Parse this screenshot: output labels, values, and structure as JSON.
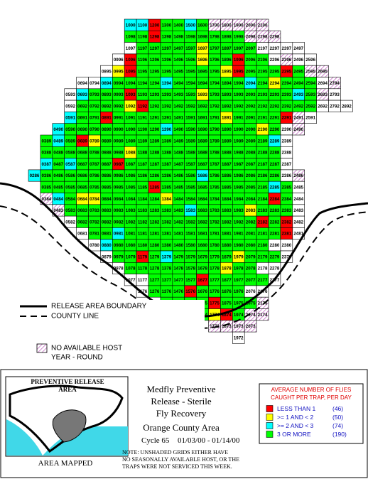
{
  "map": {
    "status_colors": {
      "r": "#ff0000",
      "y": "#ffff00",
      "c": "#00ffff",
      "g": "#00ff00",
      "w": "#ffffff"
    },
    "rows": [
      {
        "cells": [
          "1000",
          "1100",
          "1200",
          "1300",
          "1400",
          "1500",
          "1600",
          "1700",
          "1800",
          "1900",
          "2000",
          "2100"
        ],
        "status": "ccrggcghhhhh"
      },
      {
        "cells": [
          "1098",
          "1198",
          "1298",
          "1398",
          "1498",
          "1598",
          "1698",
          "1798",
          "1898",
          "1998",
          "2098",
          "2198",
          "2298"
        ],
        "status": "ggrggggggghhh"
      },
      {
        "cells": [
          "1097",
          "1197",
          "1297",
          "1397",
          "1497",
          "1597",
          "1697",
          "1797",
          "1897",
          "1997",
          "2097",
          "2197",
          "2297",
          "2397",
          "2497"
        ],
        "status": "wgggggyggggwwww"
      },
      {
        "cells": [
          "0996",
          "1096",
          "1196",
          "1296",
          "1396",
          "1496",
          "1596",
          "1696",
          "1796",
          "1896",
          "1996",
          "2096",
          "2196",
          "2296",
          "2396",
          "2496",
          "2596"
        ],
        "status": "wrgggggyggrggwhww"
      },
      {
        "cells": [
          "0895",
          "0995",
          "1095",
          "1195",
          "1295",
          "1395",
          "1495",
          "1595",
          "1695",
          "1795",
          "1895",
          "1995",
          "2095",
          "2195",
          "2295",
          "2395",
          "2495",
          "2595",
          "2695"
        ],
        "status": "wyrgggggggyrgggrghh"
      },
      {
        "cells": [
          "0694",
          "0794",
          "0894",
          "0994",
          "1094",
          "1194",
          "1294",
          "1394",
          "1494",
          "1594",
          "1694",
          "1794",
          "1894",
          "1994",
          "2094",
          "2194",
          "2294",
          "2394",
          "2494",
          "2594",
          "2694",
          "2794"
        ],
        "status": "wwcggggcggggggcgygggwh"
      },
      {
        "cells": [
          "0593",
          "0693",
          "0793",
          "0893",
          "0993",
          "1093",
          "1193",
          "1293",
          "1393",
          "1493",
          "1593",
          "1693",
          "1793",
          "1893",
          "1993",
          "2093",
          "2193",
          "2293",
          "2393",
          "2493",
          "2593",
          "2693",
          "2793"
        ],
        "status": "wcgggrgggggygggggggcghw"
      },
      {
        "cells": [
          "0592",
          "0692",
          "0792",
          "0892",
          "0992",
          "1092",
          "1192",
          "1292",
          "1392",
          "1492",
          "1592",
          "1692",
          "1792",
          "1892",
          "1992",
          "2092",
          "2192",
          "2292",
          "2392",
          "2492",
          "2592",
          "2692",
          "2792",
          "2892"
        ],
        "status": "wggggyrggggggggggggggwww"
      },
      {
        "cells": [
          "0591",
          "0691",
          "0791",
          "0891",
          "0991",
          "1091",
          "1191",
          "1291",
          "1391",
          "1491",
          "1591",
          "1691",
          "1791",
          "1891",
          "1991",
          "2091",
          "2191",
          "2291",
          "2391",
          "2491",
          "2591"
        ],
        "status": "cggrgggggggggyggggrhw"
      },
      {
        "cells": [
          "0490",
          "0590",
          "0690",
          "0790",
          "0890",
          "0990",
          "1090",
          "1190",
          "1290",
          "1390",
          "1490",
          "1590",
          "1690",
          "1790",
          "1890",
          "1990",
          "2090",
          "2190",
          "2290",
          "2390",
          "2490"
        ],
        "status": "cggggggggcgggggggygwh"
      },
      {
        "cells": [
          "0389",
          "0489",
          "0589",
          "0689",
          "0789",
          "0889",
          "0989",
          "1089",
          "1189",
          "1289",
          "1389",
          "1489",
          "1589",
          "1689",
          "1789",
          "1889",
          "1989",
          "2089",
          "2189",
          "2289",
          "2389"
        ],
        "status": "gcgryggggggggggggggcw"
      },
      {
        "cells": [
          "0388",
          "0488",
          "0588",
          "0688",
          "0788",
          "0888",
          "0988",
          "1088",
          "1188",
          "1288",
          "1388",
          "1488",
          "1588",
          "1688",
          "1788",
          "1888",
          "1988",
          "2088",
          "2188",
          "2288",
          "2388"
        ],
        "status": "gggggggyggggggggggggw"
      },
      {
        "cells": [
          "0387",
          "0487",
          "0587",
          "0687",
          "0787",
          "0887",
          "0987",
          "1087",
          "1187",
          "1287",
          "1387",
          "1487",
          "1587",
          "1687",
          "1787",
          "1887",
          "1987",
          "2087",
          "2187",
          "2287",
          "2387"
        ],
        "status": "cgcgggrgggggggggggggw"
      },
      {
        "cells": [
          "0286",
          "0386",
          "0486",
          "0586",
          "0686",
          "0786",
          "0886",
          "0986",
          "1086",
          "1186",
          "1286",
          "1386",
          "1486",
          "1586",
          "1686",
          "1786",
          "1886",
          "1986",
          "2086",
          "2186",
          "2286",
          "2386",
          "2486"
        ],
        "status": "cgggggggggggggcggggggwh"
      },
      {
        "cells": [
          "0385",
          "0485",
          "0585",
          "0685",
          "0785",
          "0885",
          "0985",
          "1085",
          "1185",
          "1285",
          "1385",
          "1485",
          "1585",
          "1685",
          "1785",
          "1885",
          "1985",
          "2085",
          "2185",
          "2285",
          "2385",
          "2485"
        ],
        "status": "gggggggggrgggggggggcgw"
      },
      {
        "cells": [
          "0384",
          "0484",
          "0584",
          "0684",
          "0784",
          "0884",
          "0984",
          "1084",
          "1184",
          "1284",
          "1384",
          "1484",
          "1584",
          "1684",
          "1784",
          "1884",
          "1984",
          "2084",
          "2184",
          "2284",
          "2384",
          "2484"
        ],
        "status": "hcgyygggggyggggggggrgw"
      },
      {
        "cells": [
          "0483",
          "0583",
          "0683",
          "0783",
          "0883",
          "0983",
          "1083",
          "1183",
          "1283",
          "1383",
          "1483",
          "1583",
          "1683",
          "1783",
          "1883",
          "1983",
          "2083",
          "2183",
          "2283",
          "2383",
          "2483"
        ],
        "status": "hggggggggggcggggygggw"
      },
      {
        "cells": [
          "0582",
          "0682",
          "0782",
          "0882",
          "0982",
          "1082",
          "1182",
          "1282",
          "1382",
          "1482",
          "1582",
          "1682",
          "1782",
          "1882",
          "1982",
          "2082",
          "2182",
          "2282",
          "2382",
          "2482"
        ],
        "status": "wgggggggggggggggrgrw"
      },
      {
        "cells": [
          "0681",
          "0781",
          "0881",
          "0981",
          "1081",
          "1181",
          "1281",
          "1381",
          "1481",
          "1581",
          "1681",
          "1781",
          "1881",
          "1981",
          "2081",
          "2181",
          "2281",
          "2381",
          "2481"
        ],
        "status": "wggcgggggggggggggrw"
      },
      {
        "cells": [
          "0780",
          "0880",
          "0980",
          "1080",
          "1180",
          "1280",
          "1380",
          "1480",
          "1580",
          "1680",
          "1780",
          "1880",
          "1980",
          "2080",
          "2180",
          "2280",
          "2380"
        ],
        "status": "wcgggggggggggggww"
      },
      {
        "cells": [
          "0879",
          "0979",
          "1079",
          "1179",
          "1279",
          "1379",
          "1479",
          "1579",
          "1679",
          "1779",
          "1879",
          "1979",
          "2079",
          "2179",
          "2279",
          "2379"
        ],
        "status": "wggrgcgggggygggw"
      },
      {
        "cells": [
          "0978",
          "1078",
          "1178",
          "1278",
          "1378",
          "1478",
          "1578",
          "1678",
          "1778",
          "1878",
          "1978",
          "2078",
          "2178",
          "2278"
        ],
        "status": "wggggggggyggww"
      },
      {
        "cells": [
          "1077",
          "1177",
          "1277",
          "1377",
          "1477",
          "1577",
          "1677",
          "1777",
          "1877",
          "1977",
          "2077",
          "2177",
          "2277"
        ],
        "status": "wwggggrgggggw"
      },
      {
        "cells": [
          "1176",
          "1276",
          "1376",
          "1476",
          "1576",
          "1676",
          "1776",
          "1876",
          "1976",
          "2076",
          "2176"
        ],
        "status": "wgggrggggww"
      },
      {
        "cells": [
          "1375",
          "1475",
          "1575",
          "1675",
          "1775",
          "1875",
          "1975",
          "2075",
          "2175"
        ],
        "status": "ggggrgggh"
      },
      {
        "cells": [
          "1674",
          "1774",
          "1874",
          "1974",
          "2074",
          "2174"
        ],
        "status": "gyrghh"
      },
      {
        "cells": [
          "1773",
          "1873",
          "1973",
          "2073"
        ],
        "status": "hhhh"
      },
      {
        "cells": [
          "1972"
        ],
        "status": "w"
      }
    ]
  },
  "map_legend": {
    "boundary": "RELEASE AREA BOUNDARY",
    "county": "COUNTY LINE",
    "no_host": [
      "NO AVAILABLE HOST",
      "YEAR - ROUND"
    ]
  },
  "inset": {
    "title": [
      "PREVENTIVE RELEASE",
      "AREA"
    ],
    "caption": "AREA MAPPED"
  },
  "info": {
    "lines": [
      "Medfly Preventive",
      "Release - Sterile",
      "Fly Recovery",
      "Orange County Area"
    ],
    "cycle": "Cycle 65",
    "dates": "01/03/00 - 01/14/00",
    "note": [
      "NOTE: UNSHADED GRIDS EITHER HAVE",
      "NO SEASONALLY AVAILABLE HOST, OR THE",
      "TRAPS WERE NOT SERVICED THIS WEEK."
    ]
  },
  "flies_legend": {
    "title": [
      "AVERAGE NUMBER OF FLIES",
      "CAUGHT PER TRAP, PER DAY"
    ],
    "items": [
      {
        "label": "LESS THAN 1",
        "count": "(46)",
        "color": "#ff0000"
      },
      {
        "label": ">= 1 AND < 2",
        "count": "(50)",
        "color": "#ffff00"
      },
      {
        "label": ">= 2 AND < 3",
        "count": "(74)",
        "color": "#00ffff"
      },
      {
        "label": "3 OR MORE",
        "count": "(190)",
        "color": "#00ff00"
      }
    ]
  }
}
